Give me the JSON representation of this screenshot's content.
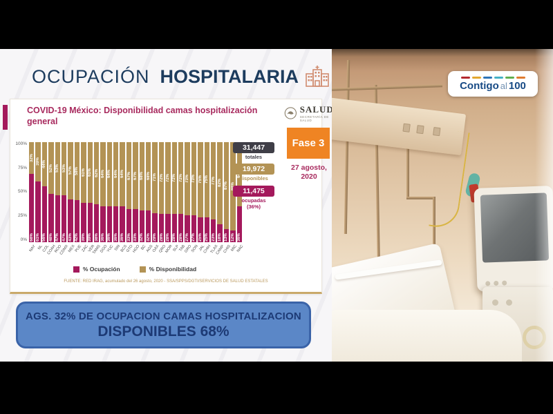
{
  "slide": {
    "title_light": "OCUPACIÓN",
    "title_bold": "HOSPITALARIA"
  },
  "card": {
    "subtitle": "COVID-19 México: Disponibilidad camas hospitalización general",
    "salud": {
      "name": "SALUD",
      "sub": "SECRETARÍA DE SALUD"
    },
    "fase_badge": "Fase 3",
    "date": "27 agosto, 2020",
    "stats": [
      {
        "value": "31,447",
        "label": "totales",
        "box_color": "#3f3e47",
        "label_color": "#3f3e47"
      },
      {
        "value": "19,972",
        "label": "disponibles",
        "box_color": "#b39355",
        "label_color": "#b39355"
      },
      {
        "value": "11,475",
        "label": "ocupadas",
        "sublabel": "(36%)",
        "box_color": "#a4195c",
        "label_color": "#a4195c"
      }
    ],
    "source": "FUENTE: RED IRAG, acumulado del 26 agosto, 2020  -  SSA/SPPS/DGTI/SERVICIOS DE SALUD ESTATALES"
  },
  "chart_data": {
    "type": "bar",
    "stacked": true,
    "title": "COVID-19 México: Disponibilidad camas hospitalización general",
    "categories": [
      "NAY",
      "NL",
      "COL",
      "COAH",
      "ROO",
      "CDMX",
      "MEX",
      "PUE",
      "ZAC",
      "VER",
      "TAMS",
      "DGO",
      "YUC",
      "SIN",
      "BCS",
      "GTO",
      "HGO",
      "BC",
      "AGS",
      "OAX",
      "QRO",
      "MOR",
      "SLP",
      "TAB",
      "GRO",
      "SON",
      "JAL",
      "CHIH",
      "TLAX",
      "CAMP",
      "CHIS",
      "MIC",
      "NAC"
    ],
    "series": [
      {
        "name": "% Ocupación",
        "color": "#a4195c",
        "values": [
          68,
          61,
          56,
          48,
          47,
          47,
          43,
          42,
          39,
          39,
          38,
          36,
          36,
          36,
          36,
          33,
          33,
          32,
          32,
          29,
          28,
          28,
          28,
          28,
          27,
          27,
          25,
          25,
          23,
          18,
          13,
          12,
          36
        ]
      },
      {
        "name": "% Disponibilidad",
        "color": "#b39355",
        "values": [
          32,
          39,
          44,
          52,
          53,
          53,
          57,
          58,
          61,
          61,
          62,
          64,
          64,
          64,
          64,
          67,
          67,
          68,
          68,
          71,
          72,
          72,
          72,
          72,
          73,
          73,
          75,
          75,
          77,
          82,
          87,
          88,
          64
        ]
      }
    ],
    "y_ticks": [
      "100%",
      "75%",
      "50%",
      "25%",
      "0%"
    ],
    "ylim": [
      0,
      100
    ],
    "value_labels": "percent-inside-segments",
    "legend_position": "bottom",
    "grid": false
  },
  "banner": {
    "line1": "AGS. 32% DE OCUPACION CAMAS HOSPITALIZACION",
    "line2": "DISPONIBLES 68%",
    "bg_color": "#5b87c7",
    "border_color": "#3a63a8",
    "text_color": "#1d3a75"
  },
  "photo": {
    "logo": {
      "part1": "Contigo",
      "part2": "al",
      "part3": "100",
      "dash_colors": [
        "#b3282d",
        "#e3a72f",
        "#2d74b8",
        "#45b0c4",
        "#5fae4f",
        "#e07b2f"
      ]
    }
  },
  "colors": {
    "occupied": "#a4195c",
    "available": "#b39355",
    "title_blue": "#1d3c5e",
    "subtitle_magenta": "#a82a5e",
    "fase_orange": "#ef8423"
  }
}
